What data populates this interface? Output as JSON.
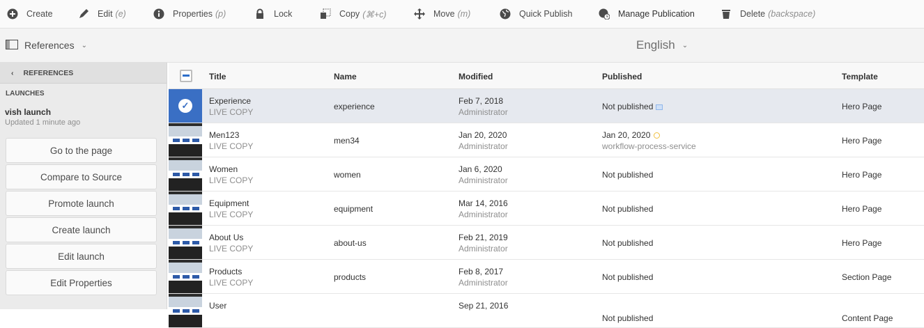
{
  "toolbar": {
    "items": [
      {
        "label": "Create",
        "hint": "",
        "icon": "plus-circle-icon"
      },
      {
        "label": "Edit",
        "hint": "(e)",
        "icon": "pencil-icon"
      },
      {
        "label": "Properties",
        "hint": "(p)",
        "icon": "info-icon"
      },
      {
        "label": "Lock",
        "hint": "",
        "icon": "lock-icon"
      },
      {
        "label": "Copy",
        "hint": "(⌘+c)",
        "icon": "copy-icon"
      },
      {
        "label": "Move",
        "hint": "(m)",
        "icon": "move-icon"
      },
      {
        "label": "Quick Publish",
        "hint": "",
        "icon": "globe-icon"
      },
      {
        "label": "Manage Publication",
        "hint": "",
        "icon": "globe-clock-icon"
      },
      {
        "label": "Delete",
        "hint": "(backspace)",
        "icon": "trash-icon"
      }
    ]
  },
  "rail": {
    "selector": "References",
    "language": "English"
  },
  "sidebar": {
    "back_label": "REFERENCES",
    "section": "LAUNCHES",
    "launch_name": "vish launch",
    "updated": "Updated 1 minute ago",
    "buttons": [
      "Go to the page",
      "Compare to Source",
      "Promote launch",
      "Create launch",
      "Edit launch",
      "Edit Properties"
    ]
  },
  "table": {
    "headers": {
      "title": "Title",
      "name": "Name",
      "modified": "Modified",
      "published": "Published",
      "template": "Template"
    },
    "rows": [
      {
        "title": "Experience",
        "type": "LIVE COPY",
        "name": "experience",
        "modified": "Feb 7, 2018",
        "modified_by": "Administrator",
        "published": "Not published",
        "published_by": "",
        "status_icon": "calendar-icon",
        "template": "Hero Page",
        "selected": true
      },
      {
        "title": "Men123",
        "type": "LIVE COPY",
        "name": "men34",
        "modified": "Jan 20, 2020",
        "modified_by": "Administrator",
        "published": "Jan 20, 2020",
        "published_by": "workflow-process-service",
        "status_icon": "clock-icon",
        "template": "Hero Page",
        "selected": false
      },
      {
        "title": "Women",
        "type": "LIVE COPY",
        "name": "women",
        "modified": "Jan 6, 2020",
        "modified_by": "Administrator",
        "published": "Not published",
        "published_by": "",
        "status_icon": "",
        "template": "Hero Page",
        "selected": false
      },
      {
        "title": "Equipment",
        "type": "LIVE COPY",
        "name": "equipment",
        "modified": "Mar 14, 2016",
        "modified_by": "Administrator",
        "published": "Not published",
        "published_by": "",
        "status_icon": "",
        "template": "Hero Page",
        "selected": false
      },
      {
        "title": "About Us",
        "type": "LIVE COPY",
        "name": "about-us",
        "modified": "Feb 21, 2019",
        "modified_by": "Administrator",
        "published": "Not published",
        "published_by": "",
        "status_icon": "",
        "template": "Hero Page",
        "selected": false
      },
      {
        "title": "Products",
        "type": "LIVE COPY",
        "name": "products",
        "modified": "Feb 8, 2017",
        "modified_by": "Administrator",
        "published": "Not published",
        "published_by": "",
        "status_icon": "",
        "template": "Section Page",
        "selected": false
      },
      {
        "title": "User",
        "type": "",
        "name": "",
        "modified": "Sep 21, 2016",
        "modified_by": "",
        "published": "Not published",
        "published_by": "",
        "status_icon": "",
        "template": "Content Page",
        "selected": false
      }
    ]
  }
}
